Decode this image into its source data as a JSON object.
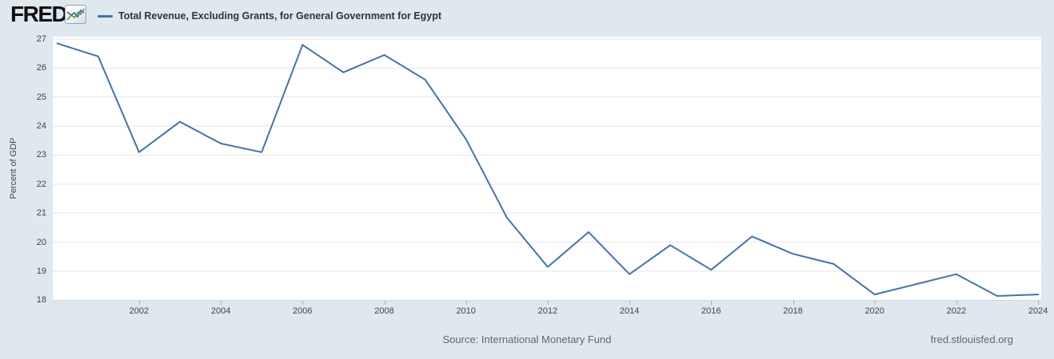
{
  "header": {
    "logo_text": "FRED",
    "registered_mark": "®",
    "legend_label": "Total Revenue, Excluding Grants, for General Government for Egypt"
  },
  "footer": {
    "source": "Source: International Monetary Fund",
    "site": "fred.stlouisfed.org"
  },
  "colors": {
    "background": "#dfe7ef",
    "plot_background": "#ffffff",
    "line": "#4572a7",
    "gridline": "#e6e6e6",
    "axis_text": "#444444",
    "title_text": "#333333",
    "footer_text": "#666666",
    "logo_icon_green": "#5b9741",
    "logo_icon_blue": "#3c5e8f"
  },
  "chart_data": {
    "type": "line",
    "title": "Total Revenue, Excluding Grants, for General Government for Egypt",
    "xlabel": "",
    "ylabel": "Percent of GDP",
    "x": [
      2000,
      2001,
      2002,
      2003,
      2004,
      2005,
      2006,
      2007,
      2008,
      2009,
      2010,
      2011,
      2012,
      2013,
      2014,
      2015,
      2016,
      2017,
      2018,
      2019,
      2020,
      2021,
      2022,
      2023,
      2024
    ],
    "values": [
      26.85,
      26.4,
      23.1,
      24.15,
      23.4,
      23.1,
      26.8,
      25.85,
      26.45,
      25.6,
      23.55,
      20.85,
      19.15,
      20.35,
      18.9,
      19.9,
      19.05,
      20.2,
      19.6,
      19.25,
      18.2,
      18.55,
      18.9,
      18.15,
      18.2
    ],
    "ylim": [
      18,
      27
    ],
    "yticks": [
      18,
      19,
      20,
      21,
      22,
      23,
      24,
      25,
      26,
      27
    ],
    "xticks": [
      2002,
      2004,
      2006,
      2008,
      2010,
      2012,
      2014,
      2016,
      2018,
      2020,
      2022,
      2024
    ],
    "grid": "horizontal",
    "legend_position": "top-left"
  }
}
